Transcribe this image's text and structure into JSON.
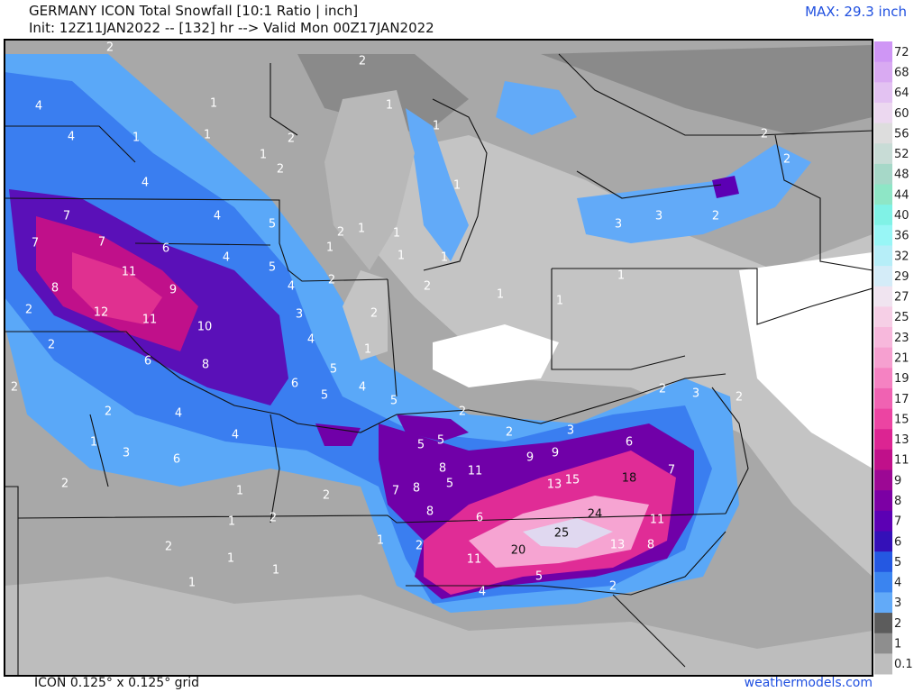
{
  "header": {
    "title": "GERMANY ICON Total Snowfall [10:1 Ratio | inch]",
    "subtitle": "Init: 12Z11JAN2022 -- [132] hr --> Valid Mon 00Z17JAN2022",
    "max_label": "MAX: 29.3 inch"
  },
  "footer": {
    "grid_label": "ICON 0.125° x 0.125° grid",
    "source": "weathermodels.com"
  },
  "colorbar": {
    "levels": [
      {
        "value": 72,
        "color": "#cf96f5"
      },
      {
        "value": 68,
        "color": "#d9aaf2"
      },
      {
        "value": 64,
        "color": "#e3c2f2"
      },
      {
        "value": 60,
        "color": "#ecd8f0"
      },
      {
        "value": 56,
        "color": "#dddddd"
      },
      {
        "value": 52,
        "color": "#c8dcd6"
      },
      {
        "value": 48,
        "color": "#a6d8c8"
      },
      {
        "value": 44,
        "color": "#8ee6c6"
      },
      {
        "value": 40,
        "color": "#80f2e6"
      },
      {
        "value": 36,
        "color": "#98f6f6"
      },
      {
        "value": 32,
        "color": "#b6eef8"
      },
      {
        "value": 29,
        "color": "#d4ecf8"
      },
      {
        "value": 27,
        "color": "#f0e4f0"
      },
      {
        "value": 25,
        "color": "#f6cfe6"
      },
      {
        "value": 23,
        "color": "#f7b8dc"
      },
      {
        "value": 21,
        "color": "#f6a0d0"
      },
      {
        "value": 19,
        "color": "#f582c2"
      },
      {
        "value": 17,
        "color": "#f062b2"
      },
      {
        "value": 15,
        "color": "#ec44a2"
      },
      {
        "value": 13,
        "color": "#dc2492"
      },
      {
        "value": 11,
        "color": "#c0108a"
      },
      {
        "value": 9,
        "color": "#9c0894"
      },
      {
        "value": 8,
        "color": "#7c00a4"
      },
      {
        "value": 7,
        "color": "#5c00b4"
      },
      {
        "value": 6,
        "color": "#3410b8"
      },
      {
        "value": 5,
        "color": "#2458e2"
      },
      {
        "value": 4,
        "color": "#3a84f0"
      },
      {
        "value": 3,
        "color": "#62aaf8"
      },
      {
        "value": 2,
        "color": "#5c5c5c"
      },
      {
        "value": 1,
        "color": "#8e8e8e"
      },
      {
        "value": 0.1,
        "color": "#bebebe"
      }
    ]
  },
  "map_labels": [
    2,
    2,
    4,
    1,
    4,
    1,
    1,
    2,
    1,
    2,
    4,
    7,
    4,
    5,
    7,
    7,
    6,
    4,
    5,
    11,
    8,
    9,
    12,
    11,
    10,
    3,
    4,
    6,
    8,
    5,
    6,
    5,
    4,
    5,
    2,
    4,
    4,
    1,
    3,
    6,
    2,
    5,
    5,
    8,
    11,
    9,
    9,
    6,
    7,
    7,
    8,
    5,
    13,
    15,
    18,
    8,
    6,
    24,
    11,
    25,
    20,
    13,
    8,
    11,
    5,
    4,
    2,
    2,
    1,
    2,
    2,
    1,
    2,
    1,
    1,
    1,
    1,
    1,
    2,
    2,
    1,
    1,
    1,
    1,
    1,
    2,
    1,
    1,
    3,
    3,
    2,
    2,
    2,
    1,
    1,
    1,
    2,
    3,
    2,
    3,
    2,
    2,
    2,
    2,
    2,
    2,
    1,
    4
  ]
}
